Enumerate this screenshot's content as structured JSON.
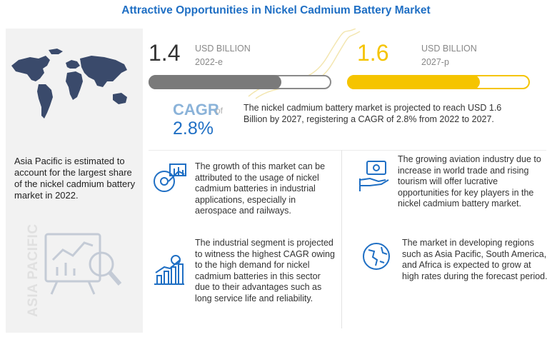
{
  "title": "Attractive Opportunities in Nickel Cadmium Battery Market",
  "left_panel": {
    "text": "Asia Pacific is estimated to account for the largest share of the nickel cadmium battery market in 2022.",
    "vertical_label": "ASIA PACIFIC",
    "icons": [
      "world-map-icon",
      "analytics-board-icon"
    ]
  },
  "chart_data": {
    "type": "bar",
    "categories": [
      "2022-e",
      "2027-p"
    ],
    "values": [
      1.4,
      1.6
    ],
    "value_labels": [
      "1.4",
      "1.6"
    ],
    "unit": "USD BILLION",
    "colors": [
      "#7a7a7a",
      "#f5c400"
    ],
    "ylim": [
      0,
      2
    ],
    "title": "",
    "xlabel": "",
    "ylabel": ""
  },
  "cagr": {
    "label": "CAGR",
    "of": "of",
    "value": "2.8%",
    "text": "The nickel cadmium battery market is projected to reach USD 1.6 Billion by 2027, registering a CAGR of 2.8% from 2022 to 2027."
  },
  "insights": [
    {
      "icon": "industrial-applications-icon",
      "text": "The growth of this market can be attributed to the usage of nickel cadmium batteries in industrial applications, especially in aerospace and railways."
    },
    {
      "icon": "money-hand-icon",
      "text": "The growing aviation industry due to increase in world trade and rising tourism will offer lucrative opportunities for key players in the nickel cadmium battery market."
    },
    {
      "icon": "growth-chart-icon",
      "text": "The industrial segment is projected to witness the highest CAGR owing to the high demand for nickel cadmium batteries in this sector due to their advantages such as long service life and reliability."
    },
    {
      "icon": "globe-icon",
      "text": "The market in developing regions such as Asia Pacific, South America, and Africa is expected to grow at high rates during the forecast period."
    }
  ],
  "colors": {
    "accent": "#1f6fc4",
    "gray_bar": "#7a7a7a",
    "yellow_bar": "#f5c400",
    "icon_blue": "#1f6fc4"
  }
}
